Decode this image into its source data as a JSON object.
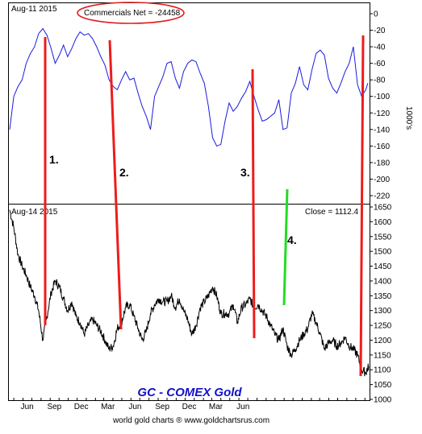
{
  "chart_data": [
    {
      "type": "line",
      "title": "",
      "date_label": "Aug-11  2015",
      "callout": "Commercials Net = -24458",
      "ylabel": "1000's",
      "ylim": [
        -240,
        0
      ],
      "yticks": [
        0,
        -20,
        -40,
        -60,
        -80,
        -100,
        -120,
        -140,
        -160,
        -180,
        -200,
        -220
      ],
      "grid": false,
      "series": [
        {
          "color": "#1a1ae0",
          "x": [
            "2012-04-17",
            "2012-05-01",
            "2012-05-15",
            "2012-05-29",
            "2012-06-12",
            "2012-06-26",
            "2012-07-10",
            "2012-07-24",
            "2012-08-07",
            "2012-08-21",
            "2012-09-04",
            "2012-09-18",
            "2012-10-02",
            "2012-10-16",
            "2012-10-30",
            "2012-11-13",
            "2012-11-27",
            "2012-12-11",
            "2012-12-25",
            "2013-01-08",
            "2013-01-22",
            "2013-02-05",
            "2013-02-19",
            "2013-03-05",
            "2013-03-19",
            "2013-04-02",
            "2013-04-16",
            "2013-04-30",
            "2013-05-14",
            "2013-05-28",
            "2013-06-11",
            "2013-06-25",
            "2013-07-09",
            "2013-07-23",
            "2013-08-06",
            "2013-08-20",
            "2013-09-03",
            "2013-09-17",
            "2013-10-01",
            "2013-10-15",
            "2013-10-29",
            "2013-11-12",
            "2013-11-26",
            "2013-12-10",
            "2013-12-24",
            "2014-01-07",
            "2014-01-21",
            "2014-02-04",
            "2014-02-18",
            "2014-03-04",
            "2014-03-18",
            "2014-04-01",
            "2014-04-15",
            "2014-04-29",
            "2014-05-13",
            "2014-05-27",
            "2014-06-10",
            "2014-06-24",
            "2014-07-08",
            "2014-07-22",
            "2014-08-05",
            "2014-08-19",
            "2014-09-02",
            "2014-09-16",
            "2014-09-30",
            "2014-10-14",
            "2014-10-28",
            "2014-11-11",
            "2014-11-25",
            "2014-12-09",
            "2014-12-23",
            "2015-01-06",
            "2015-01-20",
            "2015-02-03",
            "2015-02-17",
            "2015-03-03",
            "2015-03-17",
            "2015-03-31",
            "2015-04-14",
            "2015-04-28",
            "2015-05-12",
            "2015-05-26",
            "2015-06-09",
            "2015-06-23",
            "2015-07-07",
            "2015-07-21",
            "2015-08-04",
            "2015-08-11"
          ],
          "values": [
            -140,
            -100,
            -88,
            -80,
            -60,
            -48,
            -40,
            -24,
            -18,
            -26,
            -42,
            -60,
            -50,
            -38,
            -52,
            -42,
            -30,
            -22,
            -26,
            -24,
            -30,
            -40,
            -52,
            -62,
            -80,
            -88,
            -92,
            -80,
            -70,
            -80,
            -78,
            -96,
            -112,
            -124,
            -140,
            -100,
            -88,
            -76,
            -60,
            -58,
            -78,
            -90,
            -70,
            -60,
            -56,
            -58,
            -72,
            -84,
            -112,
            -150,
            -160,
            -158,
            -130,
            -108,
            -118,
            -112,
            -102,
            -94,
            -82,
            -100,
            -116,
            -130,
            -128,
            -124,
            -120,
            -104,
            -140,
            -138,
            -96,
            -84,
            -64,
            -86,
            -92,
            -68,
            -48,
            -44,
            -50,
            -78,
            -90,
            -96,
            -84,
            -70,
            -60,
            -40,
            -86,
            -100,
            -92,
            -84
          ]
        }
      ]
    },
    {
      "type": "line",
      "title": "GC - COMEX Gold",
      "date_label": "Aug-14  2015",
      "close_label": "Close = 1112.4",
      "ylim": [
        1000,
        1650
      ],
      "yticks": [
        1000,
        1050,
        1100,
        1150,
        1200,
        1250,
        1300,
        1350,
        1400,
        1450,
        1500,
        1550,
        1600,
        1650
      ],
      "x_tick_labels": [
        "Jun",
        "Sep",
        "Dec",
        "Mar",
        "Jun",
        "Sep",
        "Dec",
        "Mar",
        "Jun"
      ],
      "grid": false,
      "series": [
        {
          "color": "#000000",
          "x": [
            "2012-04-17",
            "2012-05-01",
            "2012-05-15",
            "2012-05-29",
            "2012-06-12",
            "2012-06-26",
            "2012-07-10",
            "2012-07-24",
            "2012-08-07",
            "2012-08-21",
            "2012-09-04",
            "2012-09-18",
            "2012-10-02",
            "2012-10-16",
            "2012-10-30",
            "2012-11-13",
            "2012-11-27",
            "2012-12-11",
            "2012-12-25",
            "2013-01-08",
            "2013-01-22",
            "2013-02-05",
            "2013-02-19",
            "2013-03-05",
            "2013-03-19",
            "2013-04-02",
            "2013-04-16",
            "2013-04-30",
            "2013-05-14",
            "2013-05-28",
            "2013-06-11",
            "2013-06-25",
            "2013-07-09",
            "2013-07-23",
            "2013-08-06",
            "2013-08-20",
            "2013-09-03",
            "2013-09-17",
            "2013-10-01",
            "2013-10-15",
            "2013-10-29",
            "2013-11-12",
            "2013-11-26",
            "2013-12-10",
            "2013-12-24",
            "2014-01-07",
            "2014-01-21",
            "2014-02-04",
            "2014-02-18",
            "2014-03-04",
            "2014-03-18",
            "2014-04-01",
            "2014-04-15",
            "2014-04-29",
            "2014-05-13",
            "2014-05-27",
            "2014-06-10",
            "2014-06-24",
            "2014-07-08",
            "2014-07-22",
            "2014-08-05",
            "2014-08-19",
            "2014-09-02",
            "2014-09-16",
            "2014-09-30",
            "2014-10-14",
            "2014-10-28",
            "2014-11-11",
            "2014-11-25",
            "2014-12-09",
            "2014-12-23",
            "2015-01-06",
            "2015-01-20",
            "2015-02-03",
            "2015-02-17",
            "2015-03-03",
            "2015-03-17",
            "2015-03-31",
            "2015-04-14",
            "2015-04-28",
            "2015-05-12",
            "2015-05-26",
            "2015-06-09",
            "2015-06-23",
            "2015-07-07",
            "2015-07-21",
            "2015-08-04",
            "2015-08-14"
          ],
          "values": [
            1640,
            1580,
            1490,
            1450,
            1420,
            1380,
            1350,
            1300,
            1200,
            1280,
            1360,
            1400,
            1380,
            1340,
            1300,
            1330,
            1280,
            1260,
            1220,
            1250,
            1270,
            1250,
            1230,
            1200,
            1170,
            1180,
            1240,
            1260,
            1310,
            1320,
            1280,
            1240,
            1200,
            1230,
            1290,
            1320,
            1340,
            1330,
            1330,
            1350,
            1310,
            1340,
            1300,
            1270,
            1220,
            1250,
            1310,
            1330,
            1350,
            1380,
            1350,
            1290,
            1290,
            1290,
            1320,
            1260,
            1310,
            1320,
            1340,
            1310,
            1320,
            1300,
            1280,
            1250,
            1220,
            1200,
            1240,
            1180,
            1150,
            1170,
            1200,
            1220,
            1240,
            1290,
            1260,
            1220,
            1170,
            1190,
            1200,
            1180,
            1190,
            1210,
            1180,
            1170,
            1150,
            1100,
            1090,
            1112
          ]
        }
      ]
    }
  ],
  "annotations": [
    "1.",
    "2.",
    "3.",
    "4."
  ],
  "footer": "world gold charts  ®  www.goldchartsrus.com"
}
